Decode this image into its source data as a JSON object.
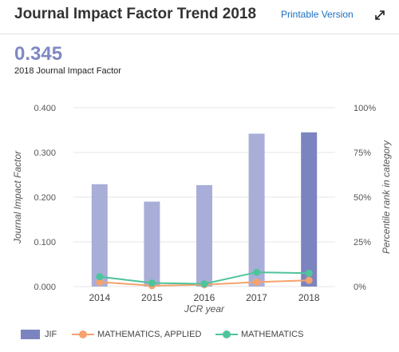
{
  "header": {
    "title": "Journal Impact Factor Trend 2018",
    "printable_label": "Printable Version",
    "expand_icon": "expand-icon"
  },
  "summary": {
    "value": "0.345",
    "label": "2018 Journal Impact Factor"
  },
  "colors": {
    "jif_bar": "#a9aed8",
    "jif_bar_current": "#7c84c0",
    "applied": "#f5a26e",
    "math": "#4ec49a",
    "grid": "#e6e6e6",
    "axis_text": "#555555"
  },
  "chart_data": {
    "type": "bar",
    "categories": [
      "2014",
      "2015",
      "2016",
      "2017",
      "2018"
    ],
    "xlabel": "JCR year",
    "ylabel": "Journal Impact Factor",
    "ylabel_right": "Percentile rank in category",
    "ylim": [
      0,
      0.4
    ],
    "yticks": [
      "0.000",
      "0.100",
      "0.200",
      "0.300",
      "0.400"
    ],
    "ylim_right": [
      0,
      100
    ],
    "yticks_right": [
      "0%",
      "25%",
      "50%",
      "75%",
      "100%"
    ],
    "series": [
      {
        "name": "JIF",
        "kind": "bar",
        "axis": "left",
        "values": [
          0.229,
          0.19,
          0.227,
          0.342,
          0.345
        ]
      },
      {
        "name": "MATHEMATICS, APPLIED",
        "kind": "line",
        "axis": "right",
        "values": [
          2.5,
          0.5,
          1.0,
          2.5,
          3.5
        ]
      },
      {
        "name": "MATHEMATICS",
        "kind": "line",
        "axis": "right",
        "values": [
          5.5,
          2.0,
          1.5,
          8.0,
          7.5
        ]
      }
    ]
  }
}
